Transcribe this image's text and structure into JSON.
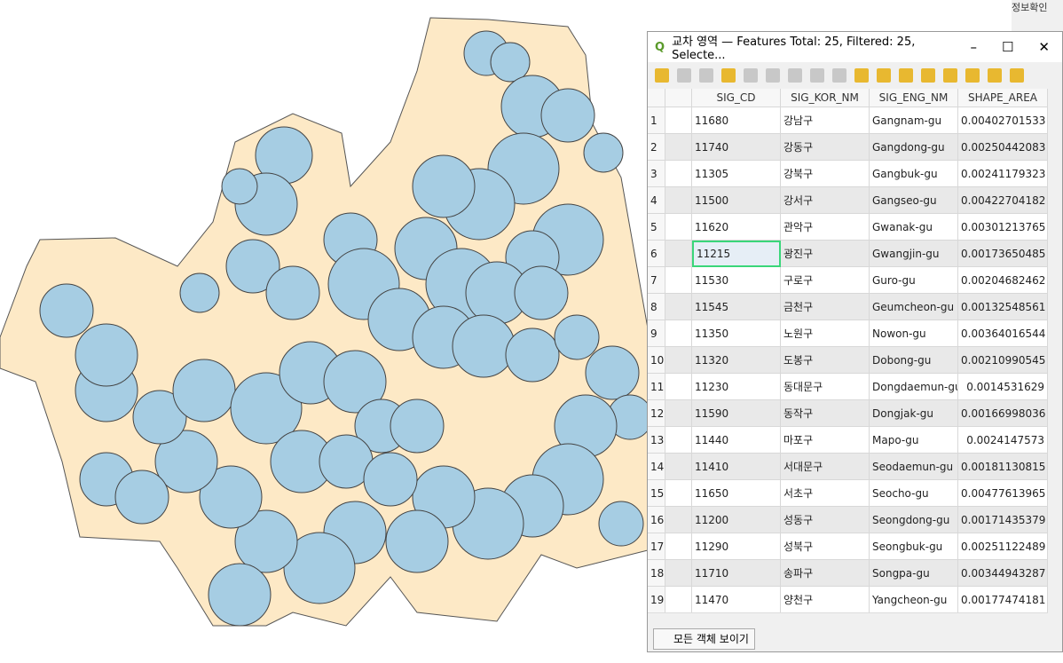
{
  "window": {
    "title": "교차 영역 — Features Total: 25, Filtered: 25, Selecte...",
    "side_panel_text": "정보확인"
  },
  "table": {
    "columns": [
      "SIG_CD",
      "SIG_KOR_NM",
      "SIG_ENG_NM",
      "SHAPE_AREA"
    ],
    "rows": [
      [
        "1",
        "11680",
        "강남구",
        "Gangnam-gu",
        "0.00402701533"
      ],
      [
        "2",
        "11740",
        "강동구",
        "Gangdong-gu",
        "0.00250442083"
      ],
      [
        "3",
        "11305",
        "강북구",
        "Gangbuk-gu",
        "0.00241179323"
      ],
      [
        "4",
        "11500",
        "강서구",
        "Gangseo-gu",
        "0.00422704182"
      ],
      [
        "5",
        "11620",
        "관악구",
        "Gwanak-gu",
        "0.00301213765"
      ],
      [
        "6",
        "11215",
        "광진구",
        "Gwangjin-gu",
        "0.00173650485"
      ],
      [
        "7",
        "11530",
        "구로구",
        "Guro-gu",
        "0.00204682462"
      ],
      [
        "8",
        "11545",
        "금천구",
        "Geumcheon-gu",
        "0.00132548561"
      ],
      [
        "9",
        "11350",
        "노원구",
        "Nowon-gu",
        "0.00364016544"
      ],
      [
        "10",
        "11320",
        "도봉구",
        "Dobong-gu",
        "0.00210990545"
      ],
      [
        "11",
        "11230",
        "동대문구",
        "Dongdaemun-gu",
        "0.0014531629"
      ],
      [
        "12",
        "11590",
        "동작구",
        "Dongjak-gu",
        "0.00166998036"
      ],
      [
        "13",
        "11440",
        "마포구",
        "Mapo-gu",
        "0.0024147573"
      ],
      [
        "14",
        "11410",
        "서대문구",
        "Seodaemun-gu",
        "0.00181130815"
      ],
      [
        "15",
        "11650",
        "서초구",
        "Seocho-gu",
        "0.00477613965"
      ],
      [
        "16",
        "11200",
        "성동구",
        "Seongdong-gu",
        "0.00171435379"
      ],
      [
        "17",
        "11290",
        "성북구",
        "Seongbuk-gu",
        "0.00251122489"
      ],
      [
        "18",
        "11710",
        "송파구",
        "Songpa-gu",
        "0.00344943287"
      ],
      [
        "19",
        "11470",
        "양천구",
        "Yangcheon-gu",
        "0.00177474181"
      ]
    ]
  },
  "footer": {
    "filter_button": "모든 객체 보이기"
  }
}
